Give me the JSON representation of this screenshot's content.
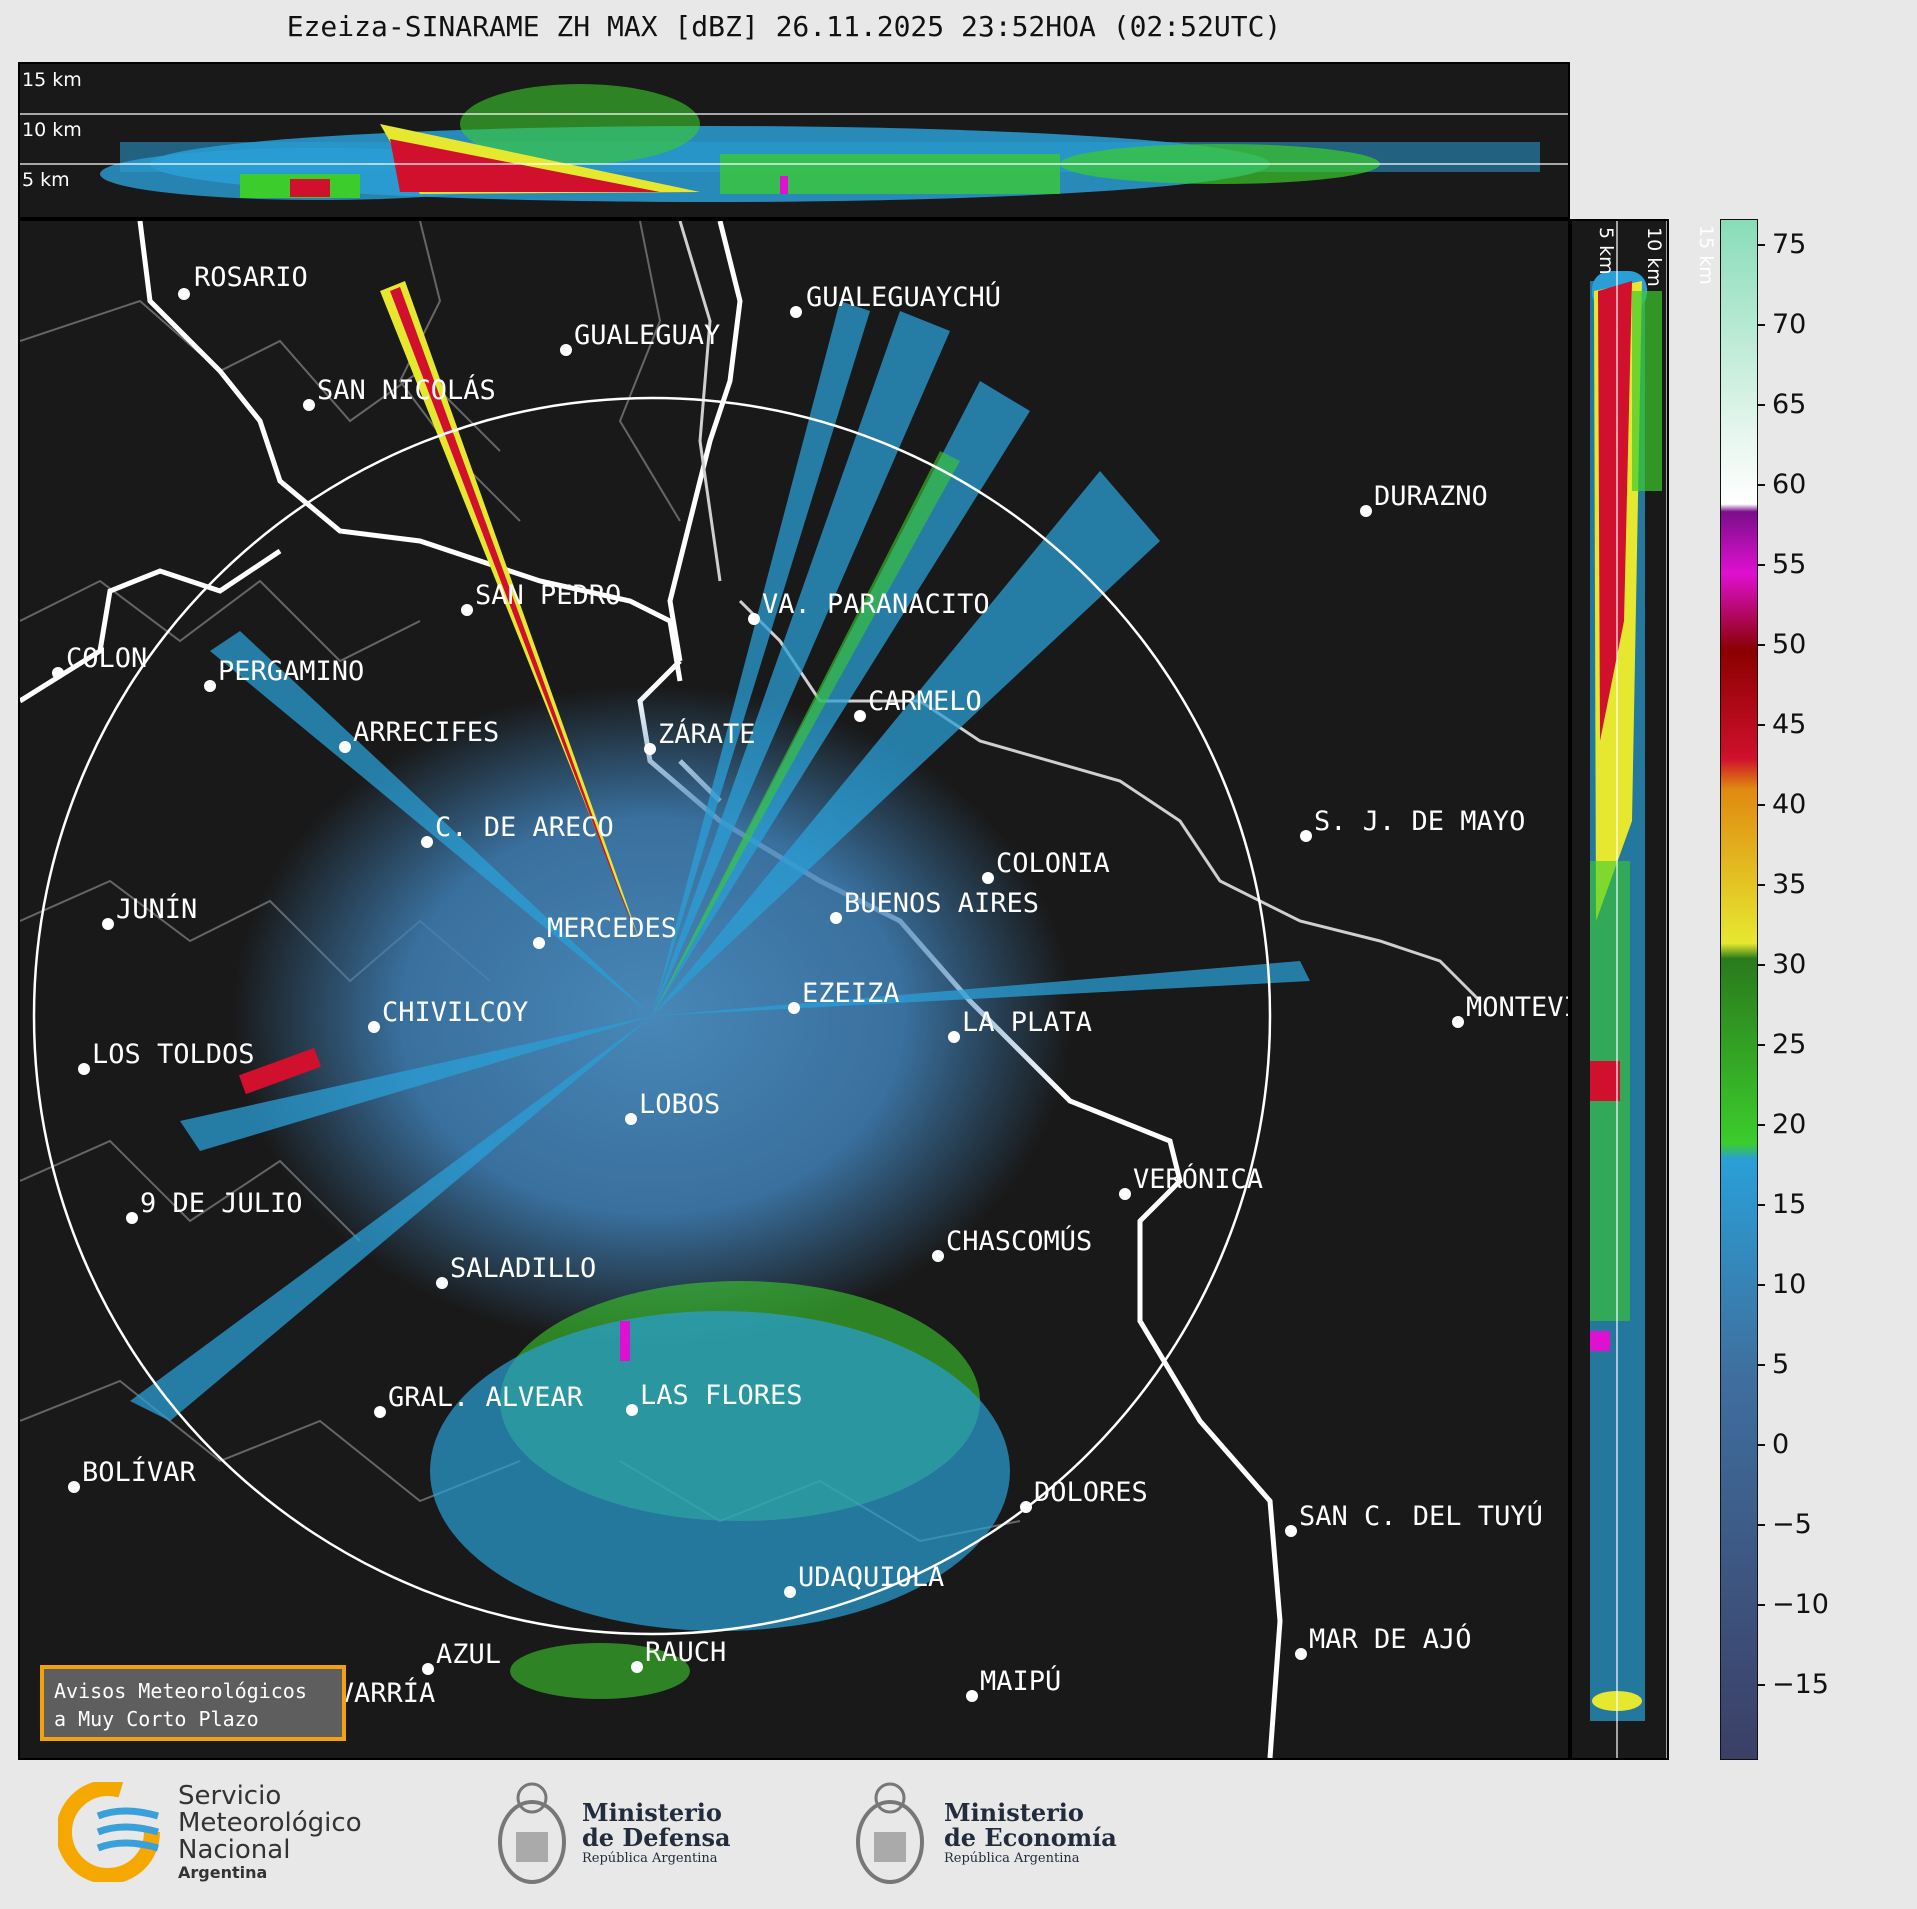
{
  "title": "Ezeiza-SINARAME ZH MAX [dBZ] 26.11.2025 23:52HOA (02:52UTC)",
  "top_panel": {
    "levels": [
      "15 km",
      "10 km",
      "5 km"
    ]
  },
  "side_panel": {
    "levels": [
      "5 km",
      "10 km",
      "15 km"
    ]
  },
  "cities": [
    {
      "name": "ROSARIO"
    },
    {
      "name": "GUALEGUAYCHÚ"
    },
    {
      "name": "GUALEGUAY"
    },
    {
      "name": "SAN NICOLÁS"
    },
    {
      "name": "DURAZNO"
    },
    {
      "name": "SAN PEDRO"
    },
    {
      "name": "VA. PARANACITO"
    },
    {
      "name": "COLON"
    },
    {
      "name": "PERGAMINO"
    },
    {
      "name": "CARMELO"
    },
    {
      "name": "ARRECIFES"
    },
    {
      "name": "ZÁRATE"
    },
    {
      "name": "S. J. DE MAYO"
    },
    {
      "name": "C. DE ARECO"
    },
    {
      "name": "COLONIA"
    },
    {
      "name": "JUNÍN"
    },
    {
      "name": "BUENOS AIRES"
    },
    {
      "name": "MERCEDES"
    },
    {
      "name": "EZEIZA"
    },
    {
      "name": "MONTEVIDEO"
    },
    {
      "name": "CHIVILCOY"
    },
    {
      "name": "LA PLATA"
    },
    {
      "name": "LOS TOLDOS"
    },
    {
      "name": "LOBOS"
    },
    {
      "name": "VERÓNICA"
    },
    {
      "name": "9 DE JULIO"
    },
    {
      "name": "CHASCOMÚS"
    },
    {
      "name": "SALADILLO"
    },
    {
      "name": "GRAL. ALVEAR"
    },
    {
      "name": "LAS FLORES"
    },
    {
      "name": "BOLÍVAR"
    },
    {
      "name": "DOLORES"
    },
    {
      "name": "SAN C. DEL TUYÚ"
    },
    {
      "name": "UDAQUIOLA"
    },
    {
      "name": "MAR DE AJÓ"
    },
    {
      "name": "AZUL"
    },
    {
      "name": "RAUCH"
    },
    {
      "name": "OLAVARRÍA"
    },
    {
      "name": "MAIPÚ"
    }
  ],
  "colorbar": {
    "unit": "dBZ",
    "ticks": [
      "75",
      "70",
      "65",
      "60",
      "55",
      "50",
      "45",
      "40",
      "35",
      "30",
      "25",
      "20",
      "15",
      "10",
      "5",
      "0",
      "−5",
      "−10",
      "−15"
    ],
    "colors": {
      "low": "#3b3f66",
      "mid_low": "#3f6f9f",
      "blue": "#2a9fd6",
      "green": "#3ccc2c",
      "dark_green": "#2a7a1c",
      "yellow": "#e6e830",
      "orange": "#e08a10",
      "red": "#d0102c",
      "dark_red": "#8a0000",
      "magenta": "#e010d0",
      "purple": "#7a0f8a",
      "white": "#ffffff",
      "mint": "#88dcb8"
    }
  },
  "warning_box": {
    "line1": "Avisos Meteorológicos",
    "line2": "a Muy Corto Plazo"
  },
  "logos": {
    "smn": {
      "line1": "Servicio",
      "line2": "Meteorológico",
      "line3": "Nacional",
      "line4": "Argentina"
    },
    "defensa": {
      "line1": "Ministerio",
      "line2": "de Defensa",
      "line3": "República Argentina"
    },
    "economia": {
      "line1": "Ministerio",
      "line2": "de Economía",
      "line3": "República Argentina"
    }
  }
}
